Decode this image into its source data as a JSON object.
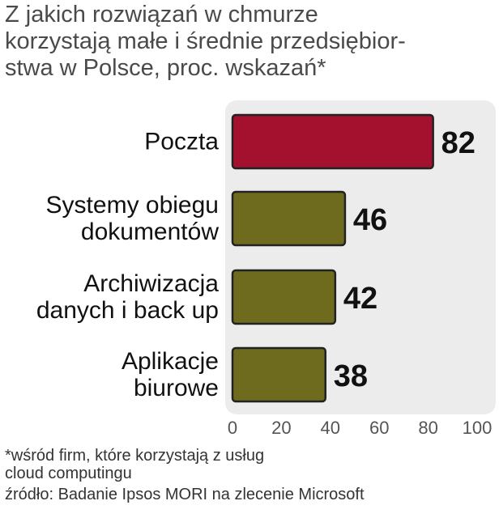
{
  "chart_data": {
    "type": "bar",
    "orientation": "horizontal",
    "title": "Z jakich rozwiązań w chmurze\nkorzystają małe i średnie przedsiębior-\nstwa w Polsce, proc. wskazań*",
    "categories": [
      "Poczta",
      "Systemy obiegu\ndokumentów",
      "Archiwizacja\ndanych i back up",
      "Aplikacje\nbiurowe"
    ],
    "values": [
      82,
      46,
      42,
      38
    ],
    "colors": [
      "#a3112e",
      "#6e6a1e",
      "#6e6a1e",
      "#6e6a1e"
    ],
    "xlim": [
      0,
      100
    ],
    "xticks": [
      0,
      20,
      40,
      60,
      80,
      100
    ],
    "footnote": "*wśród firm, które korzystają z usług\ncloud computingu",
    "source": "źródło: Badanie Ipsos MORI na zlecenie Microsoft"
  }
}
